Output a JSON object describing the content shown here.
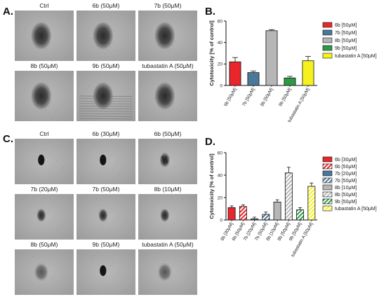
{
  "panels": {
    "A": {
      "letter": "A.",
      "images": [
        {
          "label": "Ctrl",
          "spot": "large"
        },
        {
          "label": "6b (50μM)",
          "spot": "large"
        },
        {
          "label": "7b (50μM)",
          "spot": "large"
        },
        {
          "label": "8b (50μM)",
          "spot": "large"
        },
        {
          "label": "9b (50μM)",
          "spot": "large-lines"
        },
        {
          "label": "tubastatin A (50μM)",
          "spot": "large"
        }
      ]
    },
    "B": {
      "letter": "B.",
      "chart_data": {
        "type": "bar",
        "ylabel": "Cytotoxicity [% of control]",
        "ylim": [
          0,
          60
        ],
        "yticks": [
          0,
          20,
          40,
          60
        ],
        "grid": false,
        "legend": "right",
        "categories": [
          "6b [50μM]",
          "7b [50μM]",
          "8b [50μM]",
          "9b [50μM]",
          "tubastatin A [50μM]"
        ],
        "values": [
          22,
          12,
          51,
          7,
          23
        ],
        "errors": [
          4,
          1.5,
          1,
          1.5,
          4
        ],
        "colors": [
          "#e8262b",
          "#4a7898",
          "#b6b6b6",
          "#2e9a46",
          "#f5f01e"
        ],
        "hatched": [
          false,
          false,
          false,
          false,
          false
        ],
        "legend_entries": [
          "6b [50μM]",
          "7b [50μM]",
          "8b [50μM]",
          "9b [50μM]",
          "tubastatin A [50μM]"
        ]
      }
    },
    "C": {
      "letter": "C.",
      "images": [
        {
          "label": "Ctrl",
          "spot": "small-dark"
        },
        {
          "label": "6b (30μM)",
          "spot": "small-dark"
        },
        {
          "label": "6b (50μM)",
          "spot": "small-speckled"
        },
        {
          "label": "7b (20μM)",
          "spot": "small"
        },
        {
          "label": "7b (50μM)",
          "spot": "small"
        },
        {
          "label": "8b (10μM)",
          "spot": "small"
        },
        {
          "label": "8b (50μM)",
          "spot": "diffuse"
        },
        {
          "label": "9b (50μM)",
          "spot": "small-dark"
        },
        {
          "label": "tubastatin A (50μM)",
          "spot": "diffuse"
        }
      ]
    },
    "D": {
      "letter": "D.",
      "chart_data": {
        "type": "bar",
        "ylabel": "Cytotoxicity [% of control]",
        "ylim": [
          0,
          60
        ],
        "yticks": [
          0,
          20,
          40,
          60
        ],
        "grid": false,
        "legend": "right",
        "categories": [
          "6b [30μM]",
          "6b [50μM]",
          "7b [20μM]",
          "7b [50μM]",
          "8b [10μM]",
          "8b [50μM]",
          "9b [50μM]",
          "tubastatin A [50μM]"
        ],
        "values": [
          11,
          12,
          1,
          5,
          16,
          42,
          9,
          30
        ],
        "errors": [
          1.5,
          1.5,
          1.5,
          2,
          2,
          5,
          2,
          3
        ],
        "colors": [
          "#e8262b",
          "#e8262b",
          "#4a7898",
          "#4a7898",
          "#b6b6b6",
          "#b6b6b6",
          "#2e9a46",
          "#f5f01e"
        ],
        "hatched": [
          false,
          true,
          false,
          true,
          false,
          true,
          true,
          true
        ],
        "legend_entries": [
          "6b  [30μM]",
          "6b [50μM]",
          "7b [20μM]",
          "7b [50μM]",
          "8b [10μM]",
          "8b [50μM]",
          "9b [50μM]",
          "tubastatin A [50μM]"
        ]
      }
    }
  }
}
